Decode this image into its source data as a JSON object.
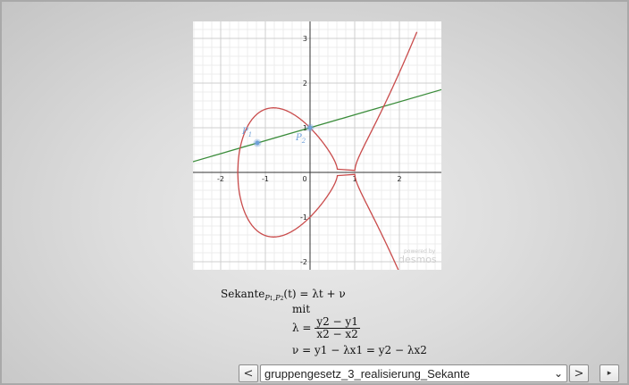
{
  "graph": {
    "x_ticks": [
      "-2",
      "-1",
      "0",
      "1",
      "2"
    ],
    "y_ticks": [
      "3",
      "2",
      "1",
      "-1",
      "-2"
    ],
    "point_labels": [
      {
        "main": "P",
        "sub": "1"
      },
      {
        "main": "P",
        "sub": "2"
      }
    ],
    "watermark_top": "powered by",
    "watermark_brand": "desmos",
    "curve_color": "#c94b4b",
    "line_color": "#3a8c3a",
    "point_color": "#6fa0d8",
    "curve": {
      "equation": "y^2 = x^3 - 2x + 1"
    },
    "points": [
      {
        "label": "P1",
        "x": -1.18,
        "y": 0.66
      },
      {
        "label": "P2",
        "x": 0.0,
        "y": 1.0
      }
    ],
    "secant": {
      "slope": 0.29,
      "intercept": 1.0
    }
  },
  "formula": {
    "line1_word": "Sekante",
    "line1_sub": "P1,P2",
    "line1_rest": "(t) = λt + ν",
    "mit": "mit",
    "lambda_lhs": "λ =",
    "lambda_num": "y2 − y1",
    "lambda_den": "x2 − x2",
    "nu_line": "ν = y1 − λx1 = y2 − λx2"
  },
  "nav": {
    "prev_label": "<",
    "next_label": ">",
    "selected_slide": "gruppengesetz_3_realisierung_Sekante",
    "dropdown_arrow": "⌄",
    "play_label": "▸"
  }
}
